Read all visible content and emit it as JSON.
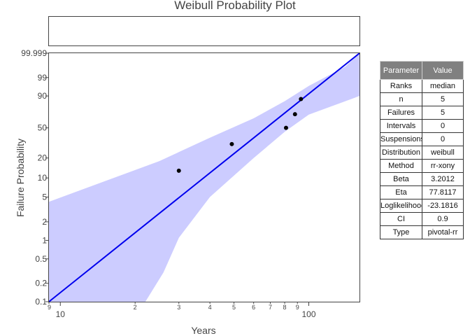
{
  "chart_data": {
    "type": "scatter",
    "title": "Weibull Probability Plot",
    "xlabel": "Years",
    "ylabel": "Failure Probability",
    "x_scale": "log",
    "y_scale": "weibull",
    "xlim": [
      9,
      160
    ],
    "ylim": [
      0.1,
      99.999
    ],
    "x_ticks_major": [
      {
        "value": 10,
        "label": "10"
      },
      {
        "value": 100,
        "label": "100"
      }
    ],
    "x_ticks_minor": [
      {
        "value": 9,
        "label": "9"
      },
      {
        "value": 20,
        "label": "2"
      },
      {
        "value": 30,
        "label": "3"
      },
      {
        "value": 40,
        "label": "4"
      },
      {
        "value": 50,
        "label": "5"
      },
      {
        "value": 60,
        "label": "6"
      },
      {
        "value": 70,
        "label": "7"
      },
      {
        "value": 80,
        "label": "8"
      },
      {
        "value": 90,
        "label": "9"
      }
    ],
    "y_ticks": [
      {
        "value": 0.1,
        "label": "0.1"
      },
      {
        "value": 0.2,
        "label": "0.2"
      },
      {
        "value": 0.5,
        "label": "0.5"
      },
      {
        "value": 1,
        "label": "1"
      },
      {
        "value": 2,
        "label": "2"
      },
      {
        "value": 5,
        "label": "5"
      },
      {
        "value": 10,
        "label": "10"
      },
      {
        "value": 20,
        "label": "20"
      },
      {
        "value": 50,
        "label": "50"
      },
      {
        "value": 90,
        "label": "90"
      },
      {
        "value": 99,
        "label": "99"
      },
      {
        "value": 99.999,
        "label": "99.999"
      }
    ],
    "points": {
      "x": [
        30,
        49,
        81,
        88,
        93
      ],
      "y": [
        12.9,
        31.4,
        50,
        68.6,
        87.1
      ]
    },
    "fit_line": {
      "x": [
        9,
        160
      ],
      "y": [
        0.1,
        99.999
      ],
      "color": "#0000ee"
    },
    "confidence_band": {
      "upper": {
        "x": [
          9,
          25,
          40,
          60,
          80,
          100,
          140,
          160
        ],
        "y": [
          4.2,
          18,
          38,
          63,
          85,
          96.5,
          99.9,
          99.999
        ]
      },
      "lower": {
        "x": [
          22,
          26,
          30,
          40,
          60,
          80,
          100,
          160
        ],
        "y": [
          0.1,
          0.3,
          1.1,
          5,
          20,
          45,
          68,
          90
        ]
      },
      "color": "#ccccff"
    },
    "grid": false,
    "legend": "none"
  },
  "parameters_table": {
    "header": [
      "Parameter",
      "Value"
    ],
    "rows": [
      [
        "Ranks",
        "median"
      ],
      [
        "n",
        "5"
      ],
      [
        "Failures",
        "5"
      ],
      [
        "Intervals",
        "0"
      ],
      [
        "Suspensions",
        "0"
      ],
      [
        "Distribution",
        "weibull"
      ],
      [
        "Method",
        "rr-xony"
      ],
      [
        "Beta",
        "3.2012"
      ],
      [
        "Eta",
        "77.8117"
      ],
      [
        "Loglikelihood",
        "-23.1816"
      ],
      [
        "CI",
        "0.9"
      ],
      [
        "Type",
        "pivotal-rr"
      ]
    ]
  },
  "colors": {
    "points": "#000000",
    "axis": "#444444",
    "header_bg": "#808080"
  }
}
